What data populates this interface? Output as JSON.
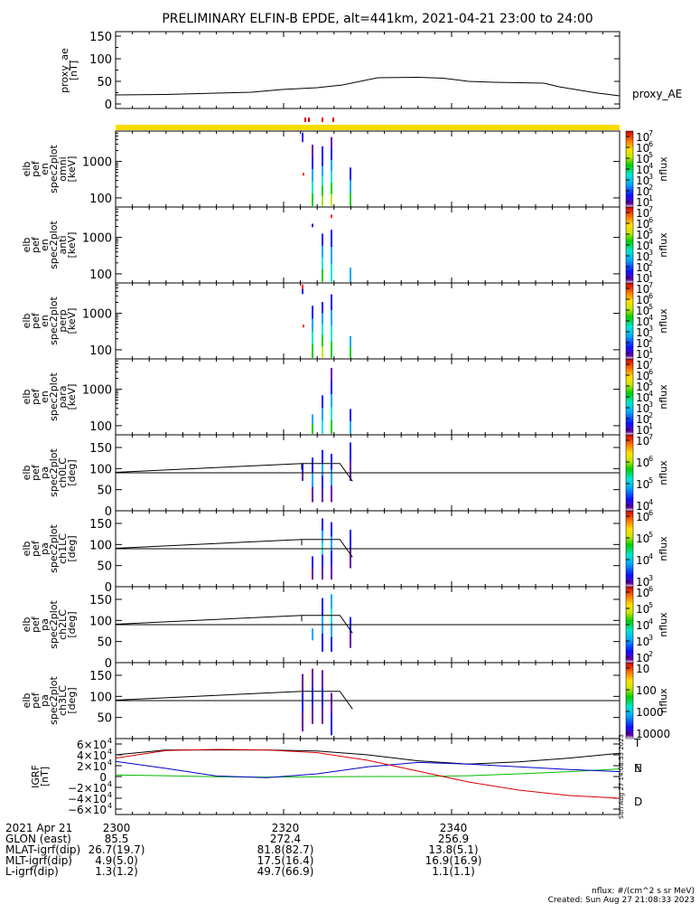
{
  "title": "PRELIMINARY ELFIN-B EPDE, alt=441km, 2021-04-21 23:00 to 24:00",
  "chart_data": [
    {
      "type": "line",
      "panel": "proxy_ae",
      "ylabel": [
        "proxy_ae",
        "[nT]"
      ],
      "ylim": [
        0,
        150
      ],
      "yticks": [
        "0",
        "50",
        "100",
        "150"
      ],
      "series": [
        {
          "name": "proxy_AE",
          "x": [
            0,
            10,
            20,
            27,
            33,
            40,
            45,
            52,
            60,
            65,
            70,
            75,
            85,
            88,
            95,
            100
          ],
          "y": [
            20,
            21,
            24,
            26,
            32,
            36,
            42,
            58,
            59,
            57,
            50,
            48,
            46,
            38,
            25,
            18
          ]
        }
      ]
    },
    {
      "type": "heatmap",
      "panel": "omni",
      "ylabel": [
        "elb",
        "pef",
        "en",
        "spec2plot",
        "omni",
        "[keV]"
      ],
      "yscale": "log",
      "yticks": [
        "100",
        "1000"
      ],
      "colorbar": {
        "label": "nflux",
        "ticks": [
          "10",
          "10",
          "10",
          "10",
          "10",
          "10",
          "10"
        ],
        "exponents": [
          "1",
          "2",
          "3",
          "4",
          "5",
          "6",
          "7"
        ]
      }
    },
    {
      "type": "heatmap",
      "panel": "anti",
      "ylabel": [
        "elb",
        "pef",
        "en",
        "spec2plot",
        "anti",
        "[keV]"
      ],
      "yscale": "log",
      "yticks": [
        "100",
        "1000"
      ],
      "colorbar": {
        "label": "nflux",
        "ticks": [
          "10",
          "10",
          "10",
          "10",
          "10",
          "10",
          "10"
        ],
        "exponents": [
          "1",
          "2",
          "3",
          "4",
          "5",
          "6",
          "7"
        ]
      }
    },
    {
      "type": "heatmap",
      "panel": "perp",
      "ylabel": [
        "elb",
        "pef",
        "en",
        "spec2plot",
        "perp",
        "[keV]"
      ],
      "yscale": "log",
      "yticks": [
        "100",
        "1000"
      ],
      "colorbar": {
        "label": "nflux",
        "ticks": [
          "10",
          "10",
          "10",
          "10",
          "10",
          "10",
          "10"
        ],
        "exponents": [
          "1",
          "2",
          "3",
          "4",
          "5",
          "6",
          "7"
        ]
      }
    },
    {
      "type": "heatmap",
      "panel": "para",
      "ylabel": [
        "elb",
        "pef",
        "en",
        "spec2plot",
        "para",
        "[keV]"
      ],
      "yscale": "log",
      "yticks": [
        "100",
        "1000"
      ],
      "colorbar": {
        "label": "nflux",
        "ticks": [
          "10",
          "10",
          "10",
          "10",
          "10",
          "10",
          "10"
        ],
        "exponents": [
          "1",
          "2",
          "3",
          "4",
          "5",
          "6",
          "7"
        ]
      }
    },
    {
      "type": "heatmap",
      "panel": "ch0LC",
      "ylabel": [
        "elb",
        "pef",
        "pa",
        "spec2plot",
        "ch0LC",
        "[deg]"
      ],
      "ylim": [
        0,
        180
      ],
      "yticks": [
        "0",
        "50",
        "100",
        "150"
      ],
      "colorbar": {
        "label": "nflux",
        "ticks": [
          "10",
          "10",
          "10",
          "10"
        ],
        "exponents": [
          "4",
          "5",
          "6",
          "7"
        ]
      }
    },
    {
      "type": "heatmap",
      "panel": "ch1LC",
      "ylabel": [
        "elb",
        "pef",
        "pa",
        "spec2plot",
        "ch1LC",
        "[deg]"
      ],
      "ylim": [
        0,
        180
      ],
      "yticks": [
        "0",
        "50",
        "100",
        "150"
      ],
      "colorbar": {
        "label": "nflux",
        "ticks": [
          "10",
          "10",
          "10",
          "10"
        ],
        "exponents": [
          "3",
          "4",
          "5",
          "6"
        ]
      }
    },
    {
      "type": "heatmap",
      "panel": "ch2LC",
      "ylabel": [
        "elb",
        "pef",
        "pa",
        "spec2plot",
        "ch2LC",
        "[deg]"
      ],
      "ylim": [
        0,
        180
      ],
      "yticks": [
        "0",
        "50",
        "100",
        "150"
      ],
      "colorbar": {
        "label": "nflux",
        "ticks": [
          "10",
          "10",
          "10",
          "10",
          "10"
        ],
        "exponents": [
          "2",
          "3",
          "4",
          "5",
          "6"
        ]
      }
    },
    {
      "type": "heatmap",
      "panel": "ch3LC",
      "ylabel": [
        "elb",
        "pef",
        "pa",
        "spec2plot",
        "ch3LC",
        "[deg]"
      ],
      "ylim": [
        0,
        180
      ],
      "yticks": [
        "50",
        "100",
        "150"
      ],
      "colorbar": {
        "label": "nflux",
        "ticks": [
          "10000",
          "1000",
          "100",
          "10"
        ]
      }
    },
    {
      "type": "line",
      "panel": "IGRF",
      "ylabel": [
        "IGRF",
        "[nT]"
      ],
      "ylim": [
        -60000,
        60000
      ],
      "yticks": [
        "6×10",
        "4×10",
        "2×10",
        "0",
        "−2×10",
        "−4×10",
        "−6×10"
      ],
      "ytick_exponent": "4",
      "series": [
        {
          "name": "T",
          "color": "#000000",
          "x": [
            0,
            10,
            20,
            30,
            40,
            50,
            60,
            70,
            80,
            90,
            100
          ],
          "y": [
            40000,
            49000,
            49000,
            49000,
            47000,
            40000,
            29000,
            23000,
            27000,
            34000,
            43000
          ]
        },
        {
          "name": "N",
          "color": "#00bb00",
          "x": [
            0,
            10,
            20,
            30,
            40,
            50,
            60,
            70,
            80,
            90,
            100
          ],
          "y": [
            3000,
            1500,
            -500,
            -1000,
            -500,
            0,
            0,
            1500,
            5000,
            9000,
            14000
          ]
        },
        {
          "name": "E",
          "color": "#0000cc",
          "x": [
            0,
            10,
            20,
            30,
            40,
            50,
            60,
            70,
            80,
            90,
            100
          ],
          "y": [
            28000,
            15000,
            1000,
            -2000,
            5000,
            18000,
            26000,
            23000,
            18000,
            13000,
            9000
          ]
        },
        {
          "name": "D",
          "color": "#dd0000",
          "x": [
            0,
            10,
            20,
            30,
            40,
            50,
            60,
            70,
            80,
            90,
            100
          ],
          "y": [
            34000,
            48000,
            50000,
            49000,
            44000,
            30000,
            10000,
            -10000,
            -25000,
            -35000,
            -40000
          ]
        }
      ]
    }
  ],
  "sat_bar": {
    "color": "#f7dc00"
  },
  "xaxis": {
    "tick_labels": [
      "2300",
      "2320",
      "2340"
    ],
    "rows": [
      {
        "label": "2021 Apr 21",
        "values": [
          "2300",
          "2320",
          "2340"
        ]
      },
      {
        "label": "GLON (east)",
        "values": [
          "85.5",
          "272.4",
          "256.9"
        ]
      },
      {
        "label": "MLAT-igrf(dip)",
        "values": [
          "26.7(19.7)",
          "81.8(82.7)",
          "13.8(5.1)"
        ]
      },
      {
        "label": "MLT-igrf(dip)",
        "values": [
          "4.9(5.0)",
          "17.5(16.4)",
          "16.9(16.9)"
        ]
      },
      {
        "label": "L-igrf(dip)",
        "values": [
          "1.3(1.2)",
          "49.7(66.9)",
          "1.1(1.1)"
        ]
      }
    ]
  },
  "side_stamp": "Sun Aug 27 14:08:53 2023",
  "footer": {
    "units": "nflux: #/(cm^2 s sr MeV)",
    "created": "Created: Sun Aug 27 21:08:33 2023"
  }
}
